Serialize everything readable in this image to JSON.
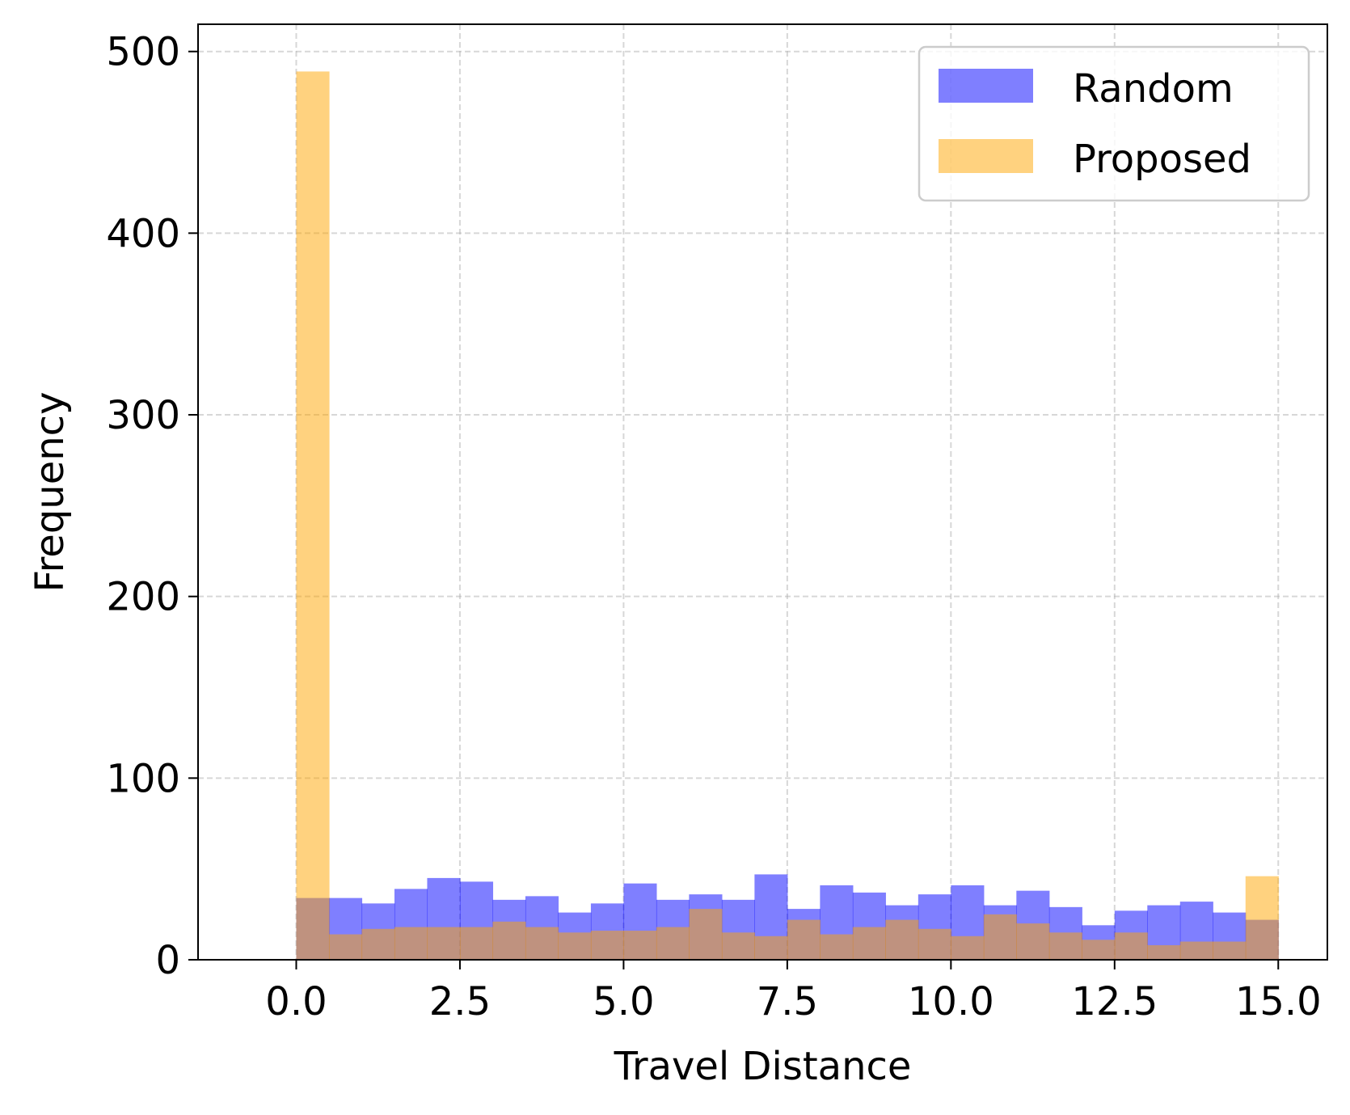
{
  "chart_data": {
    "type": "bar",
    "subtype": "overlaid-histogram",
    "title": "",
    "xlabel": "Travel Distance",
    "ylabel": "Frequency",
    "xlim": [
      -1.5,
      15.75
    ],
    "ylim": [
      0,
      500
    ],
    "xticks": [
      0,
      2.5,
      5,
      7.5,
      10,
      12.5,
      15
    ],
    "xtick_labels": [
      "0.0",
      "2.5",
      "5.0",
      "7.5",
      "10.0",
      "12.5",
      "15.0"
    ],
    "yticks": [
      0,
      100,
      200,
      300,
      400,
      500
    ],
    "ytick_labels": [
      "0",
      "100",
      "200",
      "300",
      "400",
      "500"
    ],
    "grid": true,
    "legend_position": "top-right",
    "bin_edges": [
      0,
      0.5,
      1,
      1.5,
      2,
      2.5,
      3,
      3.5,
      4,
      4.5,
      5,
      5.5,
      6,
      6.5,
      7,
      7.5,
      8,
      8.5,
      9,
      9.5,
      10,
      10.5,
      11,
      11.5,
      12,
      12.5,
      13,
      13.5,
      14,
      14.5,
      15
    ],
    "series": [
      {
        "name": "Random",
        "color": "#0000ff",
        "opacity": 0.5,
        "values": [
          34,
          34,
          31,
          39,
          45,
          43,
          33,
          35,
          26,
          31,
          42,
          33,
          36,
          33,
          47,
          28,
          41,
          37,
          30,
          36,
          41,
          30,
          38,
          29,
          19,
          27,
          30,
          32,
          26,
          22
        ]
      },
      {
        "name": "Proposed",
        "color": "#ffa500",
        "opacity": 0.5,
        "values": [
          489,
          14,
          17,
          18,
          18,
          18,
          21,
          18,
          15,
          16,
          16,
          18,
          28,
          15,
          13,
          22,
          14,
          18,
          22,
          17,
          13,
          25,
          20,
          15,
          11,
          15,
          8,
          10,
          10,
          46
        ]
      }
    ]
  }
}
